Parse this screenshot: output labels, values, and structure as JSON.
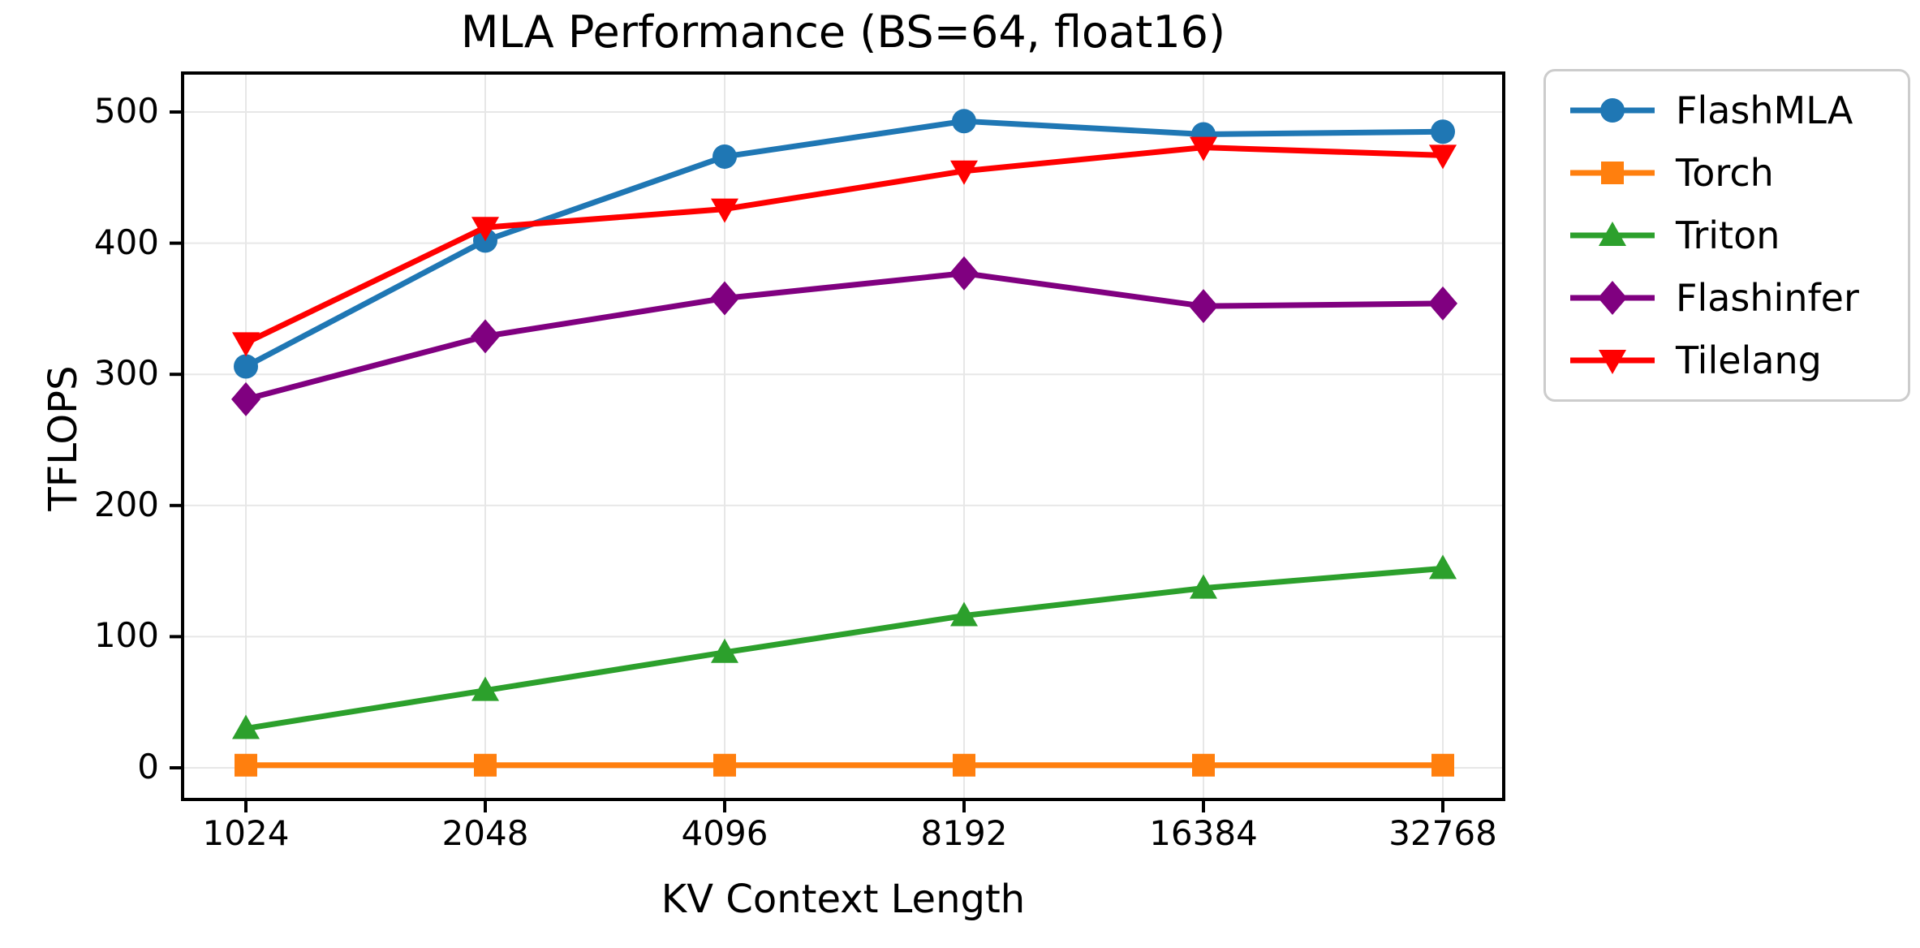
{
  "chart_data": {
    "type": "line",
    "title": "MLA Performance (BS=64, float16)",
    "xlabel": "KV Context Length",
    "ylabel": "TFLOPS",
    "categories": [
      "1024",
      "2048",
      "4096",
      "8192",
      "16384",
      "32768"
    ],
    "yticks": [
      0,
      100,
      200,
      300,
      400,
      500
    ],
    "ylim": [
      0,
      500
    ],
    "grid": true,
    "legend_position": "outside-top-right",
    "series": [
      {
        "name": "FlashMLA",
        "color": "#1f77b4",
        "marker": "circle",
        "values": [
          306,
          402,
          466,
          493,
          483,
          485
        ]
      },
      {
        "name": "Torch",
        "color": "#ff7f0e",
        "marker": "square",
        "values": [
          2,
          2,
          2,
          2,
          2,
          2
        ]
      },
      {
        "name": "Triton",
        "color": "#2ca02c",
        "marker": "triangle-up",
        "values": [
          30,
          59,
          88,
          116,
          137,
          152
        ]
      },
      {
        "name": "Flashinfer",
        "color": "#800080",
        "marker": "diamond",
        "values": [
          281,
          329,
          358,
          377,
          352,
          354
        ]
      },
      {
        "name": "Tilelang",
        "color": "#ff0000",
        "marker": "triangle-down",
        "values": [
          324,
          412,
          426,
          455,
          473,
          467
        ]
      }
    ]
  }
}
